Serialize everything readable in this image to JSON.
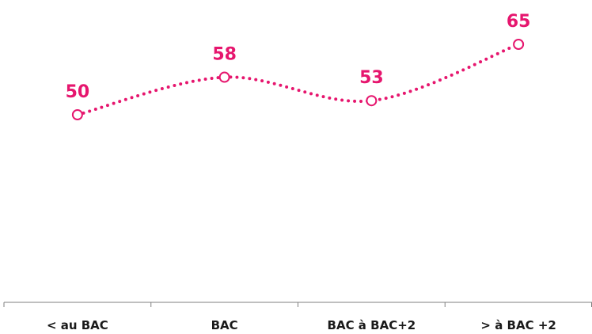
{
  "chart_data": {
    "type": "line",
    "title": "",
    "xlabel": "",
    "ylabel": "",
    "categories": [
      "< au BAC",
      "BAC",
      "BAC à BAC+2",
      "> à BAC +2"
    ],
    "series": [
      {
        "values": [
          50,
          58,
          53,
          65
        ]
      }
    ],
    "ylim": [
      0,
      80
    ],
    "grid": false,
    "legend": "none",
    "data_labels": true,
    "line_style": "dotted",
    "smooth": true,
    "marker": "hollow-circle"
  },
  "colors": {
    "series": "#e6166e",
    "axis": "#7f7f7f",
    "text": "#1a1a1a"
  }
}
